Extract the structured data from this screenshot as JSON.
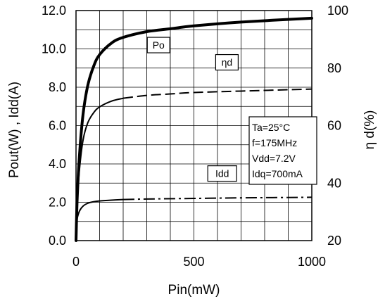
{
  "chart_data": {
    "type": "line",
    "title": "",
    "xlabel": "Pin(mW)",
    "ylabel_left": "Pout(W) , Idd(A)",
    "ylabel_right": "η d(%)",
    "xlim": [
      0,
      1000
    ],
    "ylim_left": [
      0,
      12
    ],
    "ylim_right": [
      20,
      100
    ],
    "x_ticks": [
      "0",
      "500",
      "1000"
    ],
    "y_left_ticks": [
      "0.0",
      "2.0",
      "4.0",
      "6.0",
      "8.0",
      "10.0",
      "12.0"
    ],
    "y_right_ticks": [
      "20",
      "40",
      "60",
      "80",
      "100"
    ],
    "grid": true,
    "series": [
      {
        "name": "Po",
        "axis": "left",
        "style": "solid-thick",
        "x": [
          0,
          5,
          15,
          30,
          50,
          75,
          100,
          150,
          200,
          300,
          400,
          500,
          700,
          1000
        ],
        "y": [
          0,
          2.2,
          4.5,
          6.6,
          8.1,
          9.1,
          9.7,
          10.3,
          10.6,
          10.9,
          11.05,
          11.2,
          11.4,
          11.6
        ]
      },
      {
        "name": "ηd",
        "axis": "right",
        "style": "solid-then-dash",
        "x": [
          0,
          5,
          15,
          30,
          50,
          75,
          100,
          150,
          200,
          300,
          400,
          500,
          700,
          1000
        ],
        "y": [
          20,
          33,
          45,
          55,
          61,
          64.5,
          66.5,
          68.5,
          69.5,
          70.5,
          71,
          71.5,
          72,
          72.7
        ]
      },
      {
        "name": "Idd",
        "axis": "left",
        "style": "solid-then-dashdot",
        "x": [
          0,
          5,
          15,
          30,
          50,
          75,
          100,
          150,
          200,
          300,
          500,
          700,
          1000
        ],
        "y": [
          0.6,
          1.15,
          1.55,
          1.8,
          1.95,
          2.03,
          2.07,
          2.11,
          2.14,
          2.17,
          2.2,
          2.23,
          2.26
        ]
      }
    ],
    "annotations": [
      {
        "text": "Po",
        "x": 350,
        "y": 10.2
      },
      {
        "text": "ηd",
        "x": 640,
        "y": 9.3
      },
      {
        "text": "Idd",
        "x": 620,
        "y": 3.5
      }
    ],
    "conditions": [
      "Ta=25°C",
      "f=175MHz",
      "Vdd=7.2V",
      "Idq=700mA"
    ]
  }
}
